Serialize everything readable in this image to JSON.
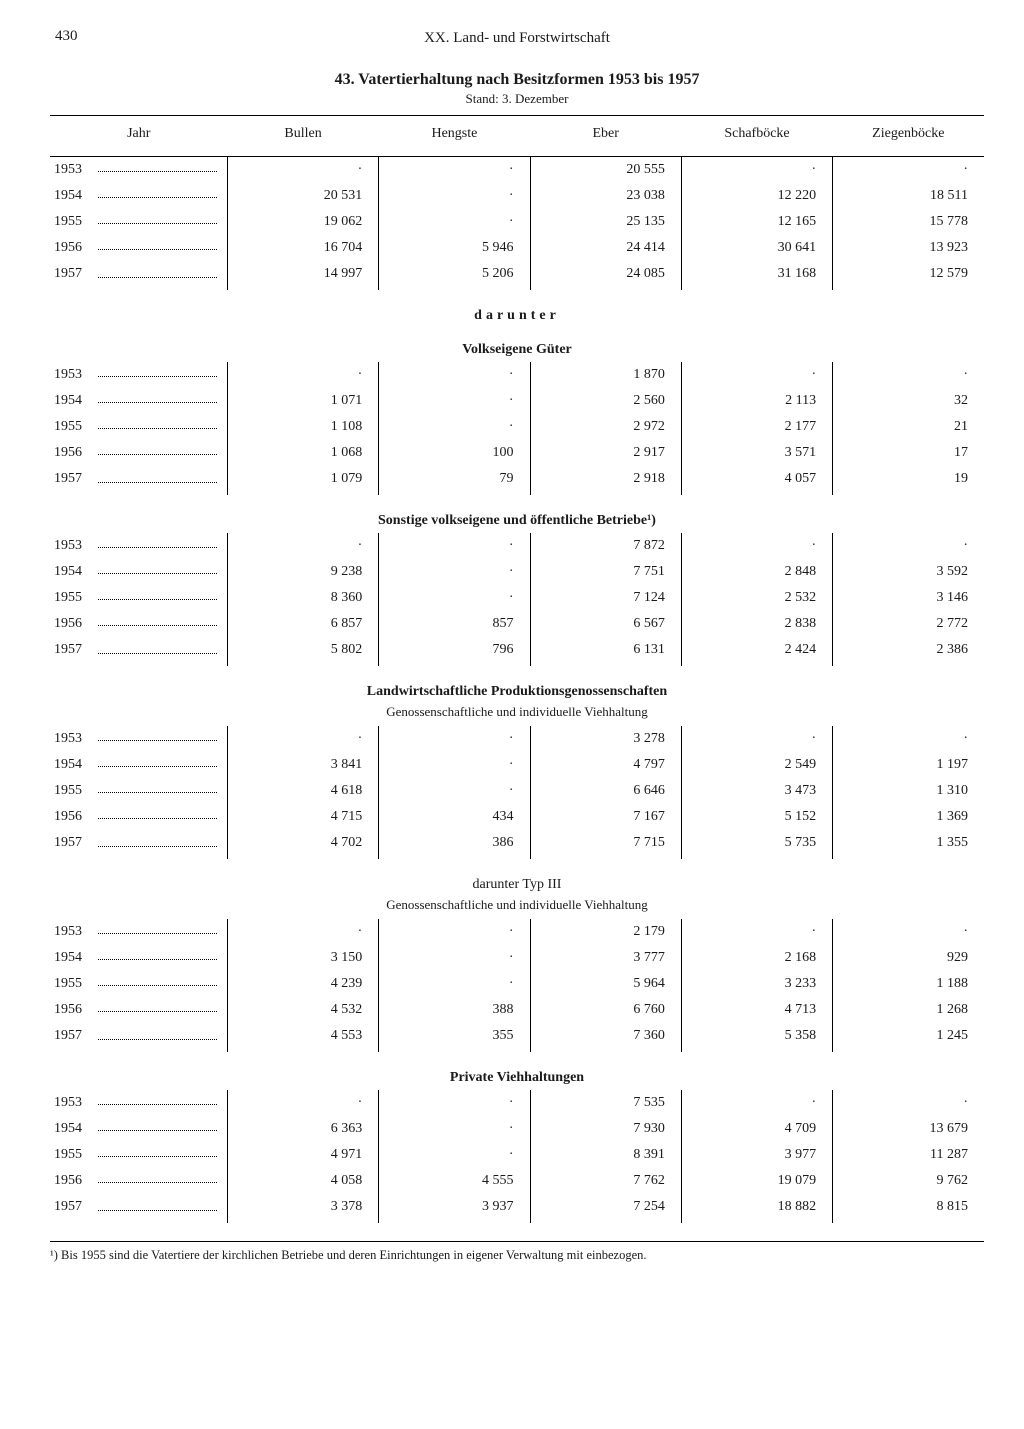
{
  "page": {
    "number": "430",
    "chapter": "XX. Land- und Forstwirtschaft",
    "title": "43. Vatertierhaltung nach Besitzformen 1953 bis 1957",
    "subtitle": "Stand: 3. Dezember"
  },
  "columns": [
    "Jahr",
    "Bullen",
    "Hengste",
    "Eber",
    "Schafböcke",
    "Ziegenböcke"
  ],
  "sections": [
    {
      "heading": null,
      "sub": null,
      "spaced_heading": null,
      "rows": [
        [
          "1953",
          "·",
          "·",
          "20 555",
          "·",
          "·"
        ],
        [
          "1954",
          "20 531",
          "·",
          "23 038",
          "12 220",
          "18 511"
        ],
        [
          "1955",
          "19 062",
          "·",
          "25 135",
          "12 165",
          "15 778"
        ],
        [
          "1956",
          "16 704",
          "5 946",
          "24 414",
          "30 641",
          "13 923"
        ],
        [
          "1957",
          "14 997",
          "5 206",
          "24 085",
          "31 168",
          "12 579"
        ]
      ]
    },
    {
      "spaced_heading": "darunter",
      "heading": "Volkseigene Güter",
      "sub": null,
      "rows": [
        [
          "1953",
          "·",
          "·",
          "1 870",
          "·",
          "·"
        ],
        [
          "1954",
          "1 071",
          "·",
          "2 560",
          "2 113",
          "32"
        ],
        [
          "1955",
          "1 108",
          "·",
          "2 972",
          "2 177",
          "21"
        ],
        [
          "1956",
          "1 068",
          "100",
          "2 917",
          "3 571",
          "17"
        ],
        [
          "1957",
          "1 079",
          "79",
          "2 918",
          "4 057",
          "19"
        ]
      ]
    },
    {
      "heading": "Sonstige volkseigene und öffentliche Betriebe¹)",
      "sub": null,
      "spaced_heading": null,
      "rows": [
        [
          "1953",
          "·",
          "·",
          "7 872",
          "·",
          "·"
        ],
        [
          "1954",
          "9 238",
          "·",
          "7 751",
          "2 848",
          "3 592"
        ],
        [
          "1955",
          "8 360",
          "·",
          "7 124",
          "2 532",
          "3 146"
        ],
        [
          "1956",
          "6 857",
          "857",
          "6 567",
          "2 838",
          "2 772"
        ],
        [
          "1957",
          "5 802",
          "796",
          "6 131",
          "2 424",
          "2 386"
        ]
      ]
    },
    {
      "heading": "Landwirtschaftliche Produktionsgenossenschaften",
      "sub": "Genossenschaftliche und individuelle Viehhaltung",
      "spaced_heading": null,
      "rows": [
        [
          "1953",
          "·",
          "·",
          "3 278",
          "·",
          "·"
        ],
        [
          "1954",
          "3 841",
          "·",
          "4 797",
          "2 549",
          "1 197"
        ],
        [
          "1955",
          "4 618",
          "·",
          "6 646",
          "3 473",
          "1 310"
        ],
        [
          "1956",
          "4 715",
          "434",
          "7 167",
          "5 152",
          "1 369"
        ],
        [
          "1957",
          "4 702",
          "386",
          "7 715",
          "5 735",
          "1 355"
        ]
      ]
    },
    {
      "heading": "darunter Typ III",
      "sub": "Genossenschaftliche und individuelle Viehhaltung",
      "spaced_heading": null,
      "heading_weight": "normal",
      "rows": [
        [
          "1953",
          "·",
          "·",
          "2 179",
          "·",
          "·"
        ],
        [
          "1954",
          "3 150",
          "·",
          "3 777",
          "2 168",
          "929"
        ],
        [
          "1955",
          "4 239",
          "·",
          "5 964",
          "3 233",
          "1 188"
        ],
        [
          "1956",
          "4 532",
          "388",
          "6 760",
          "4 713",
          "1 268"
        ],
        [
          "1957",
          "4 553",
          "355",
          "7 360",
          "5 358",
          "1 245"
        ]
      ]
    },
    {
      "heading": "Private Viehhaltungen",
      "sub": null,
      "spaced_heading": null,
      "rows": [
        [
          "1953",
          "·",
          "·",
          "7 535",
          "·",
          "·"
        ],
        [
          "1954",
          "6 363",
          "·",
          "7 930",
          "4 709",
          "13 679"
        ],
        [
          "1955",
          "4 971",
          "·",
          "8 391",
          "3 977",
          "11 287"
        ],
        [
          "1956",
          "4 058",
          "4 555",
          "7 762",
          "19 079",
          "9 762"
        ],
        [
          "1957",
          "3 378",
          "3 937",
          "7 254",
          "18 882",
          "8 815"
        ]
      ]
    }
  ],
  "footnote": "¹) Bis 1955 sind die Vatertiere der kirchlichen Betriebe und deren Einrichtungen in eigener Verwaltung mit einbezogen."
}
